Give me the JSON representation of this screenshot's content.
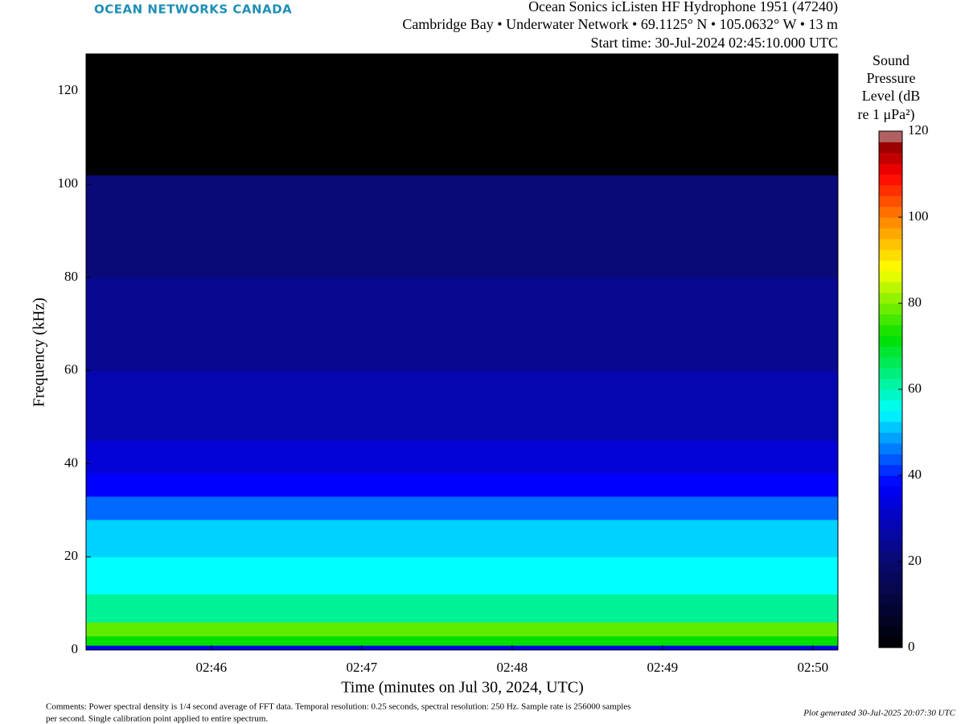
{
  "logo": "OCEAN NETWORKS CANADA",
  "comments": [
    "Comments: Power spectral density is 1/4 second average of FFT data. Temporal resolution: 0.25 seconds, spectral resolution: 250 Hz. Sample rate is 256000 samples",
    "per second. Single calibration point applied to entire spectrum."
  ],
  "generated": "Plot generated 30-Jul-2025 20:07:30 UTC",
  "chart_data": {
    "type": "heatmap",
    "title": [
      "Ocean Sonics icListen HF Hydrophone 1951 (47240)",
      "Cambridge Bay • Underwater Network • 69.1125° N • 105.0632° W • 13 m",
      "Start time: 30-Jul-2024 02:45:10.000 UTC"
    ],
    "x_label": "Time (minutes on Jul 30, 2024, UTC)",
    "y_label": "Frequency (kHz)",
    "xlim": [
      "02:45:10",
      "02:50:10"
    ],
    "xticks": [
      "02:46",
      "02:47",
      "02:48",
      "02:49",
      "02:50"
    ],
    "ylim": [
      0,
      128
    ],
    "yticks": [
      0,
      20,
      40,
      60,
      80,
      100,
      120
    ],
    "y_bins": [
      0,
      1,
      3,
      6,
      12,
      20,
      28,
      33,
      38,
      45,
      60,
      80,
      102,
      128
    ],
    "values": [
      35,
      72,
      78,
      62,
      55,
      52,
      45,
      38,
      33,
      28,
      24,
      21,
      0
    ],
    "colorbar": {
      "label": [
        "Sound",
        "Pressure",
        "Level (dB",
        "re 1 μPa²)"
      ],
      "lim": [
        0,
        120
      ],
      "ticks": [
        0,
        20,
        40,
        60,
        80,
        100,
        120
      ],
      "colormap": [
        {
          "value": 0,
          "color": "#000000"
        },
        {
          "value": 20,
          "color": "#0a0a70"
        },
        {
          "value": 38,
          "color": "#0000ff"
        },
        {
          "value": 55,
          "color": "#00ffff"
        },
        {
          "value": 72,
          "color": "#00e000"
        },
        {
          "value": 88,
          "color": "#ffff00"
        },
        {
          "value": 100,
          "color": "#ff8000"
        },
        {
          "value": 110,
          "color": "#ff0000"
        },
        {
          "value": 118,
          "color": "#800000"
        },
        {
          "value": 120,
          "color": "#ffffff"
        }
      ]
    }
  }
}
